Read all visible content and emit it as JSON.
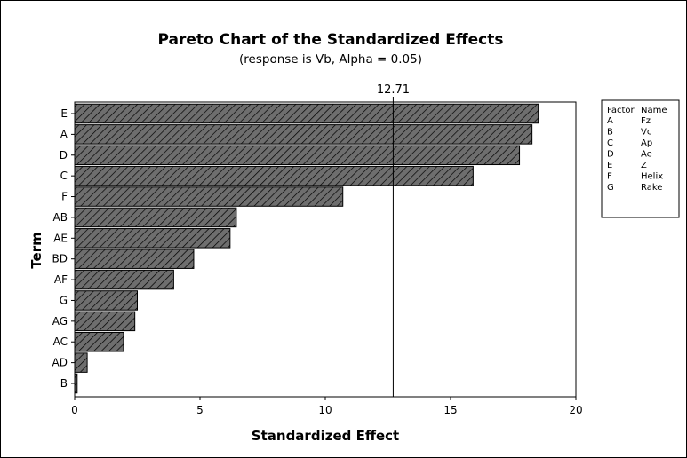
{
  "chart_data": {
    "type": "bar",
    "orientation": "horizontal",
    "title": "Pareto Chart of the Standardized Effects",
    "subtitle": "(response is Vb, Alpha = 0.05)",
    "xlabel": "Standardized Effect",
    "ylabel": "Term",
    "xlim": [
      0,
      20
    ],
    "xticks": [
      "0",
      "5",
      "10",
      "15",
      "20"
    ],
    "categories": [
      "E",
      "A",
      "D",
      "C",
      "F",
      "AB",
      "AE",
      "BD",
      "AF",
      "G",
      "AG",
      "AC",
      "AD",
      "B"
    ],
    "values": [
      18.5,
      18.25,
      17.75,
      15.9,
      10.7,
      6.45,
      6.2,
      4.75,
      3.95,
      2.5,
      2.4,
      1.95,
      0.5,
      0.1
    ],
    "reference_line": {
      "value": 12.71,
      "label": "12.71"
    },
    "bar_fill": "#6e6e6e",
    "bar_pattern": "diagonal-hatch",
    "legend": {
      "placement": "right",
      "header": {
        "factor": "Factor",
        "name": "Name"
      },
      "rows": [
        {
          "factor": "A",
          "name": "Fz"
        },
        {
          "factor": "B",
          "name": "Vc"
        },
        {
          "factor": "C",
          "name": "Ap"
        },
        {
          "factor": "D",
          "name": "Ae"
        },
        {
          "factor": "E",
          "name": "Z"
        },
        {
          "factor": "F",
          "name": "Helix"
        },
        {
          "factor": "G",
          "name": "Rake"
        }
      ]
    },
    "grid": false
  }
}
